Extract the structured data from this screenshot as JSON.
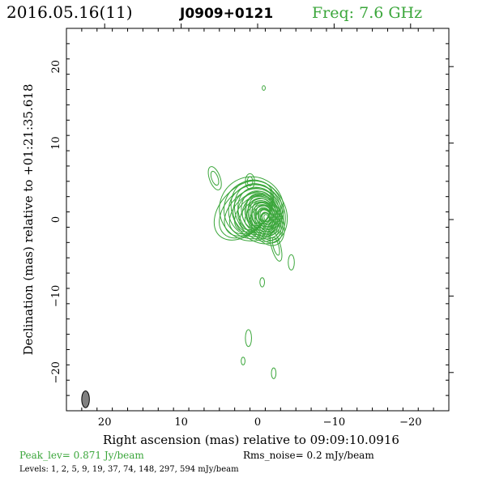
{
  "header": {
    "date": "2016.05.16(11)",
    "source": "J0909+0121",
    "freq": "Freq: 7.6 GHz"
  },
  "footer": {
    "peak": "Peak_lev=  0.871 Jy/beam",
    "rms": "Rms_noise=  0.2 mJy/beam",
    "levels": "Levels:   1,    2,    5,    9,   19,   37,   74, 148, 297, 594 mJy/beam"
  },
  "colors": {
    "contour": "#3aa63a",
    "header_freq": "#3aa63a",
    "beam": "#808080"
  },
  "chart_data": {
    "type": "contour",
    "xlabel": "Right ascension (mas) relative to 09:09:10.0916",
    "ylabel": "Declination (mas) relative to +01:21:35.618",
    "xlim": [
      25,
      -25
    ],
    "ylim": [
      -25,
      25
    ],
    "xticks": [
      20,
      10,
      0,
      -10,
      -20
    ],
    "xtick_labels": [
      "20",
      "10",
      "0",
      "−10",
      "−20"
    ],
    "yticks": [
      20,
      10,
      0,
      -10,
      -20
    ],
    "ytick_labels": [
      "20",
      "10",
      "0",
      "−10",
      "−20"
    ],
    "levels_mJy": [
      1,
      2,
      5,
      9,
      19,
      37,
      74,
      148,
      297,
      594
    ],
    "peak_Jy": 0.871,
    "rms_mJy": 0.2,
    "core": {
      "x": -1.2,
      "y": 0.2
    },
    "beam": {
      "x": 22.5,
      "y": -23.5,
      "major": 2.2,
      "minor": 1.0,
      "pa_deg": 0
    },
    "components": [
      {
        "x": -1.0,
        "y": 0.0,
        "rx": 2.2,
        "ry": 3.6,
        "pa": -25
      },
      {
        "x": -0.2,
        "y": 1.0,
        "rx": 3.4,
        "ry": 4.4,
        "pa": -30
      },
      {
        "x": 0.8,
        "y": 1.4,
        "rx": 4.2,
        "ry": 4.2,
        "pa": -40
      },
      {
        "x": 1.8,
        "y": 1.2,
        "rx": 4.6,
        "ry": 3.0,
        "pa": -45
      },
      {
        "x": 5.6,
        "y": 5.4,
        "rx": 0.7,
        "ry": 1.6,
        "pa": -20
      },
      {
        "x": 1.0,
        "y": 5.0,
        "rx": 0.6,
        "ry": 1.0,
        "pa": 0
      },
      {
        "x": -2.4,
        "y": -3.5,
        "rx": 0.6,
        "ry": 2.0,
        "pa": -15
      },
      {
        "x": -4.4,
        "y": -5.6,
        "rx": 0.4,
        "ry": 1.0,
        "pa": 0
      },
      {
        "x": -0.6,
        "y": -8.2,
        "rx": 0.3,
        "ry": 0.6,
        "pa": 0
      },
      {
        "x": 1.2,
        "y": -15.5,
        "rx": 0.4,
        "ry": 1.1,
        "pa": 0
      },
      {
        "x": 1.9,
        "y": -18.5,
        "rx": 0.25,
        "ry": 0.5,
        "pa": 0
      },
      {
        "x": -2.1,
        "y": -20.1,
        "rx": 0.3,
        "ry": 0.7,
        "pa": 0
      },
      {
        "x": -0.8,
        "y": 17.2,
        "rx": 0.2,
        "ry": 0.3,
        "pa": 0
      }
    ]
  }
}
